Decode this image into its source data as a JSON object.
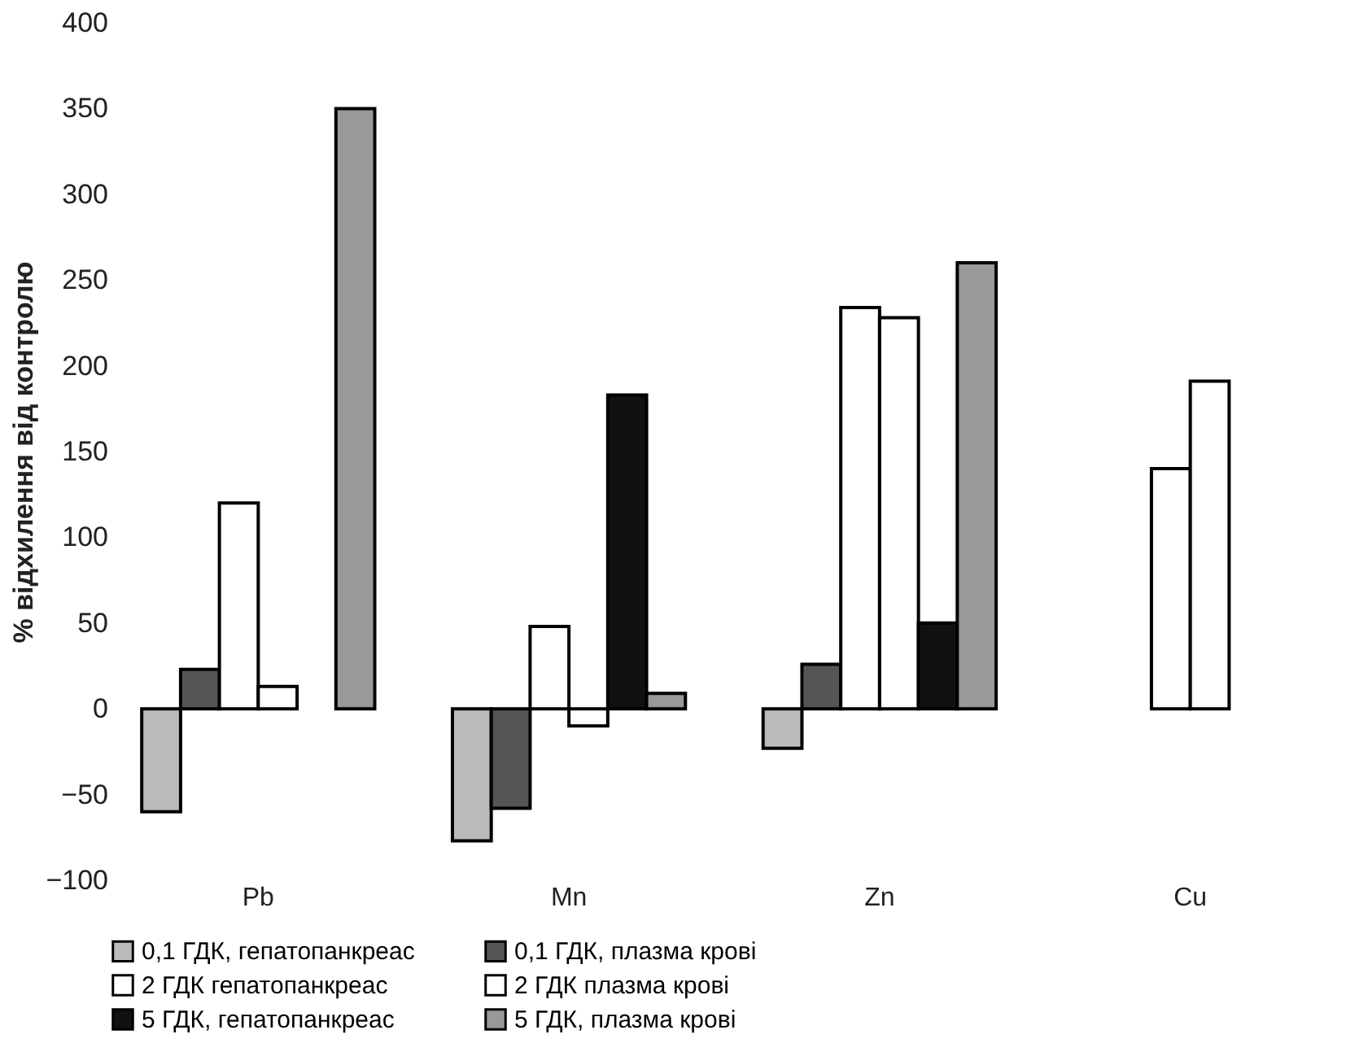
{
  "chart_data": {
    "type": "bar",
    "ylabel": "% відхилення від контролю",
    "categories": [
      "Pb",
      "Mn",
      "Zn",
      "Cu"
    ],
    "series": [
      {
        "name": "0,1 ГДК, гепатопанкреас",
        "color": "#bbbbbb",
        "values": [
          -60,
          -77,
          -23,
          null
        ]
      },
      {
        "name": "0,1 ГДК, плазма крові",
        "color": "#555555",
        "values": [
          23,
          -58,
          26,
          null
        ]
      },
      {
        "name": "2 ГДК гепатопанкреас",
        "color": "#ffffff",
        "values": [
          120,
          48,
          234,
          140
        ]
      },
      {
        "name": "2 ГДК  плазма крові",
        "color": "#ffffff",
        "values": [
          13,
          -10,
          228,
          191
        ]
      },
      {
        "name": "5 ГДК, гепатопанкреас",
        "color": "#111111",
        "values": [
          null,
          183,
          50,
          null
        ]
      },
      {
        "name": "5 ГДК, плазма крові",
        "color": "#999999",
        "values": [
          350,
          9,
          260,
          null
        ]
      }
    ],
    "ylim": [
      -100,
      400
    ],
    "yticks": [
      -100,
      -50,
      0,
      50,
      100,
      150,
      200,
      250,
      300,
      350,
      400
    ],
    "grid": false,
    "legend": "bottom"
  }
}
